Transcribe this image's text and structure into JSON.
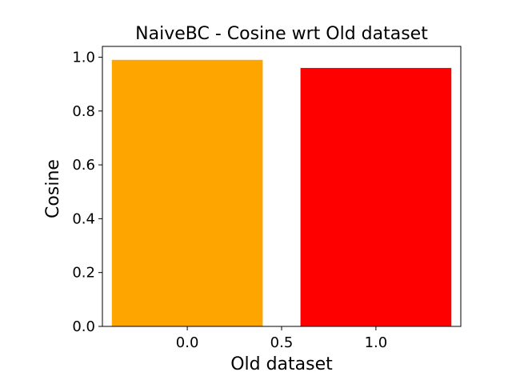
{
  "chart_data": {
    "type": "bar",
    "title": "NaiveBC - Cosine wrt Old dataset",
    "xlabel": "Old dataset",
    "ylabel": "Cosine",
    "bars": [
      {
        "x": 0.0,
        "width": 0.8,
        "value": 0.99,
        "color": "#FFA500"
      },
      {
        "x": 1.0,
        "width": 0.8,
        "value": 0.96,
        "color": "#FF0000"
      }
    ],
    "xlim": [
      -0.45,
      1.45
    ],
    "ylim": [
      0.0,
      1.04
    ],
    "xticks": [
      "0.0",
      "0.5",
      "1.0"
    ],
    "xtick_values": [
      0.0,
      0.5,
      1.0
    ],
    "yticks": [
      "0.0",
      "0.2",
      "0.4",
      "0.6",
      "0.8",
      "1.0"
    ],
    "ytick_values": [
      0.0,
      0.2,
      0.4,
      0.6,
      0.8,
      1.0
    ],
    "grid": false,
    "legend": "none"
  }
}
